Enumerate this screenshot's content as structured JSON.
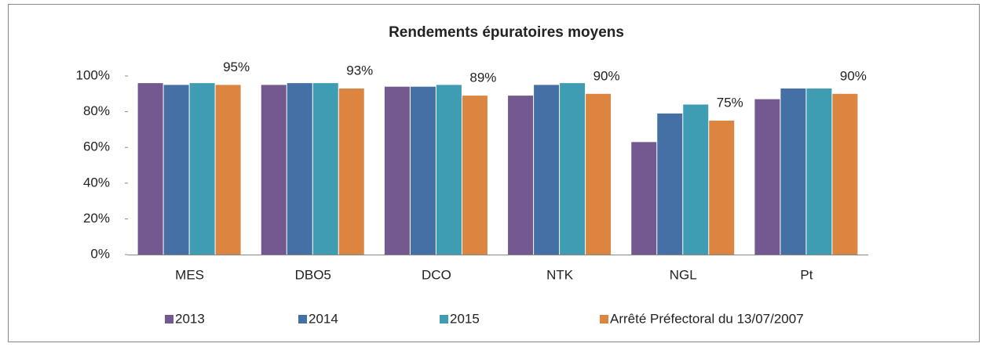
{
  "chart_data": {
    "type": "bar",
    "title": "Rendements épuratoires moyens",
    "categories": [
      "MES",
      "DBO5",
      "DCO",
      "NTK",
      "NGL",
      "Pt"
    ],
    "series": [
      {
        "name": "2013",
        "color": "#73598f",
        "values": [
          96,
          95,
          94,
          89,
          63,
          87
        ]
      },
      {
        "name": "2014",
        "color": "#4470a6",
        "values": [
          95,
          96,
          94,
          95,
          79,
          93
        ]
      },
      {
        "name": "2015",
        "color": "#3e9db3",
        "values": [
          96,
          96,
          95,
          96,
          84,
          93
        ]
      },
      {
        "name": "Arrêté Préfectoral du 13/07/2007",
        "color": "#dc8540",
        "values": [
          95,
          93,
          89,
          90,
          75,
          90
        ],
        "value_labels": [
          "95%",
          "93%",
          "89%",
          "90%",
          "75%",
          "90%"
        ]
      }
    ],
    "ylim": [
      0,
      100
    ],
    "yticks": [
      {
        "value": 0,
        "label": "0%"
      },
      {
        "value": 20,
        "label": "20%"
      },
      {
        "value": 40,
        "label": "40%"
      },
      {
        "value": 60,
        "label": "60%"
      },
      {
        "value": 80,
        "label": "80%"
      },
      {
        "value": 100,
        "label": "100%"
      }
    ],
    "grid": false,
    "legend": "bottom"
  }
}
